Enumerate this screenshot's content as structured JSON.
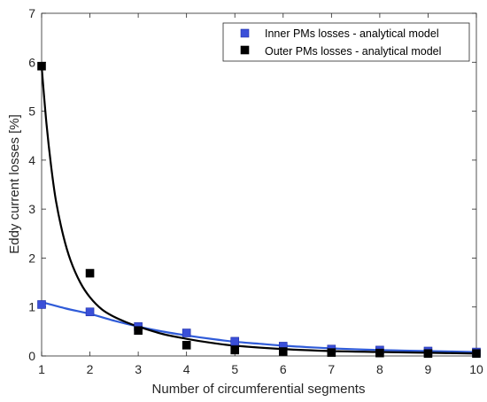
{
  "chart_data": {
    "type": "line",
    "title": "",
    "xlabel": "Number of circumferential segments",
    "ylabel": "Eddy current losses [%]",
    "xlim": [
      1,
      10
    ],
    "ylim": [
      0,
      7
    ],
    "xticks": [
      1,
      2,
      3,
      4,
      5,
      6,
      7,
      8,
      9,
      10
    ],
    "yticks": [
      0,
      1,
      2,
      3,
      4,
      5,
      6,
      7
    ],
    "grid": false,
    "legend_position": "top-right",
    "series": [
      {
        "name": "Inner PMs losses - analytical model",
        "marker": "square",
        "marker_color": "#3a4fd8",
        "line_color": "#2f5bd8",
        "x": [
          1,
          2,
          3,
          4,
          5,
          6,
          7,
          8,
          9,
          10
        ],
        "y": [
          1.05,
          0.9,
          0.6,
          0.47,
          0.3,
          0.2,
          0.14,
          0.12,
          0.1,
          0.08
        ],
        "curve_x": [
          1,
          1.5,
          2,
          2.5,
          3,
          3.5,
          4,
          4.5,
          5,
          5.5,
          6,
          6.5,
          7,
          7.5,
          8,
          8.5,
          9,
          9.5,
          10
        ],
        "curve_y": [
          1.1,
          0.97,
          0.86,
          0.72,
          0.6,
          0.5,
          0.42,
          0.35,
          0.29,
          0.25,
          0.21,
          0.18,
          0.155,
          0.135,
          0.12,
          0.11,
          0.1,
          0.09,
          0.08
        ]
      },
      {
        "name": "Outer PMs losses - analytical model",
        "marker": "square",
        "marker_color": "#000000",
        "line_color": "#000000",
        "x": [
          1,
          2,
          3,
          4,
          5,
          6,
          7,
          8,
          9,
          10
        ],
        "y": [
          5.92,
          1.69,
          0.52,
          0.22,
          0.12,
          0.09,
          0.07,
          0.06,
          0.05,
          0.05
        ],
        "curve_x": [
          1,
          1.1,
          1.2,
          1.3,
          1.45,
          1.6,
          1.8,
          2,
          2.25,
          2.5,
          2.75,
          3,
          3.5,
          4,
          4.5,
          5,
          6,
          7,
          8,
          9,
          10
        ],
        "curve_y": [
          5.92,
          4.75,
          3.85,
          3.15,
          2.45,
          1.95,
          1.5,
          1.2,
          0.95,
          0.8,
          0.69,
          0.6,
          0.45,
          0.35,
          0.27,
          0.21,
          0.14,
          0.1,
          0.08,
          0.065,
          0.05
        ]
      }
    ]
  }
}
